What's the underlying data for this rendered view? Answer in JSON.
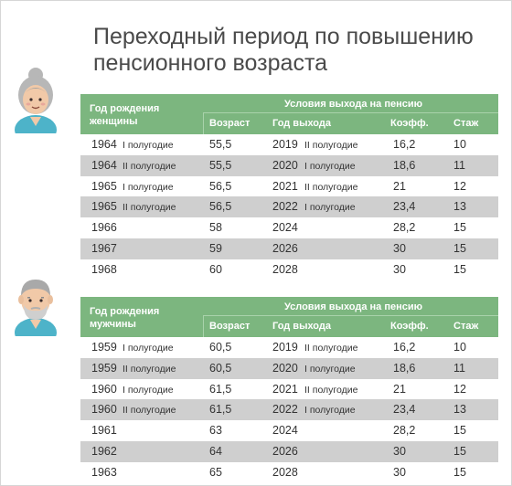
{
  "title": "Переходный период по повышению\nпенсионного возраста",
  "colors": {
    "header_green": "#7cb67f",
    "row_shade": "#cfcfcf",
    "title_text": "#4a4a4a"
  },
  "icons": {
    "female": "elderly-woman-avatar-icon",
    "male": "elderly-man-avatar-icon"
  },
  "female_table": {
    "birth_header": "Год рождения\nженщины",
    "conditions_header": "Условия выхода на пенсию",
    "columns": [
      "Возраст",
      "Год выхода",
      "Коэфф.",
      "Стаж"
    ],
    "rows": [
      {
        "year": "1964",
        "birth_half": "I полугодие",
        "age": "55,5",
        "retire_year": "2019",
        "retire_half": "II полугодие",
        "coef": "16,2",
        "stazh": "10"
      },
      {
        "year": "1964",
        "birth_half": "II полугодие",
        "age": "55,5",
        "retire_year": "2020",
        "retire_half": "I полугодие",
        "coef": "18,6",
        "stazh": "11"
      },
      {
        "year": "1965",
        "birth_half": "I полугодие",
        "age": "56,5",
        "retire_year": "2021",
        "retire_half": "II полугодие",
        "coef": "21",
        "stazh": "12"
      },
      {
        "year": "1965",
        "birth_half": "II полугодие",
        "age": "56,5",
        "retire_year": "2022",
        "retire_half": "I полугодие",
        "coef": "23,4",
        "stazh": "13"
      },
      {
        "year": "1966",
        "birth_half": "",
        "age": "58",
        "retire_year": "2024",
        "retire_half": "",
        "coef": "28,2",
        "stazh": "15"
      },
      {
        "year": "1967",
        "birth_half": "",
        "age": "59",
        "retire_year": "2026",
        "retire_half": "",
        "coef": "30",
        "stazh": "15"
      },
      {
        "year": "1968",
        "birth_half": "",
        "age": "60",
        "retire_year": "2028",
        "retire_half": "",
        "coef": "30",
        "stazh": "15"
      }
    ]
  },
  "male_table": {
    "birth_header": "Год рождения\nмужчины",
    "conditions_header": "Условия выхода на пенсию",
    "columns": [
      "Возраст",
      "Год выхода",
      "Коэфф.",
      "Стаж"
    ],
    "rows": [
      {
        "year": "1959",
        "birth_half": "I полугодие",
        "age": "60,5",
        "retire_year": "2019",
        "retire_half": "II полугодие",
        "coef": "16,2",
        "stazh": "10"
      },
      {
        "year": "1959",
        "birth_half": "II полугодие",
        "age": "60,5",
        "retire_year": "2020",
        "retire_half": "I полугодие",
        "coef": "18,6",
        "stazh": "11"
      },
      {
        "year": "1960",
        "birth_half": "I полугодие",
        "age": "61,5",
        "retire_year": "2021",
        "retire_half": "II полугодие",
        "coef": "21",
        "stazh": "12"
      },
      {
        "year": "1960",
        "birth_half": "II полугодие",
        "age": "61,5",
        "retire_year": "2022",
        "retire_half": "I полугодие",
        "coef": "23,4",
        "stazh": "13"
      },
      {
        "year": "1961",
        "birth_half": "",
        "age": "63",
        "retire_year": "2024",
        "retire_half": "",
        "coef": "28,2",
        "stazh": "15"
      },
      {
        "year": "1962",
        "birth_half": "",
        "age": "64",
        "retire_year": "2026",
        "retire_half": "",
        "coef": "30",
        "stazh": "15"
      },
      {
        "year": "1963",
        "birth_half": "",
        "age": "65",
        "retire_year": "2028",
        "retire_half": "",
        "coef": "30",
        "stazh": "15"
      }
    ]
  }
}
